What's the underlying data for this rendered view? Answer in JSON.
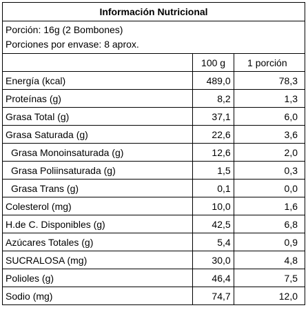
{
  "table": {
    "title": "Información Nutricional",
    "portion": [
      "Porción: 16g (2 Bombones)",
      "Porciones por envase: 8 aprox."
    ],
    "header": [
      "100 g",
      "1 porción"
    ],
    "rows": [
      {
        "label": "Energía (kcal)",
        "per100": "489,0",
        "portion": "78,3"
      },
      {
        "label": "Proteínas (g)",
        "per100": "8,2",
        "portion": "1,3"
      },
      {
        "label": "Grasa Total (g)",
        "per100": "37,1",
        "portion": "6,0"
      },
      {
        "label": "Grasa Saturada (g)",
        "per100": "22,6",
        "portion": "3,6"
      },
      {
        "label": "Grasa Monoinsaturada (g)",
        "per100": "12,6",
        "portion": "2,0",
        "indent": true
      },
      {
        "label": "Grasa Poliinsaturada (g)",
        "per100": "1,5",
        "portion": "0,3",
        "indent": true
      },
      {
        "label": "Grasa Trans (g)",
        "per100": "0,1",
        "portion": "0,0",
        "indent": true
      },
      {
        "label": "Colesterol (mg)",
        "per100": "10,0",
        "portion": "1,6"
      },
      {
        "label": "H.de C. Disponibles (g)",
        "per100": "42,5",
        "portion": "6,8"
      },
      {
        "label": "Azúcares Totales (g)",
        "per100": "5,4",
        "portion": "0,9"
      },
      {
        "label": "SUCRALOSA (mg)",
        "per100": "30,0",
        "portion": "4,8"
      },
      {
        "label": "Polioles (g)",
        "per100": "46,4",
        "portion": "7,5"
      },
      {
        "label": "Sodio (mg)",
        "per100": "74,7",
        "portion": "12,0"
      }
    ]
  }
}
